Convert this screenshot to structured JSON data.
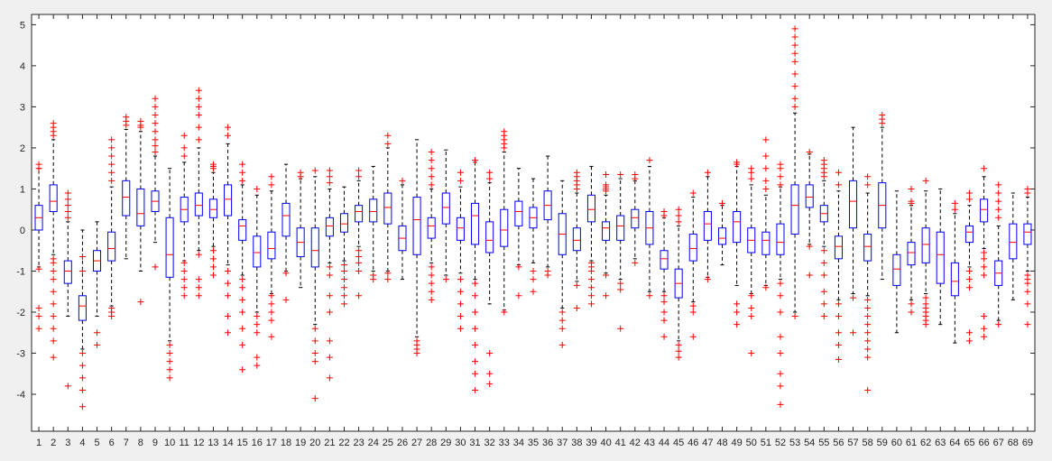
{
  "chart_data": {
    "type": "box",
    "title": "",
    "xlabel": "",
    "ylabel": "",
    "ylim": [
      -4.9,
      5.25
    ],
    "yticks": [
      -4,
      -3,
      -2,
      -1,
      0,
      1,
      2,
      3,
      4,
      5
    ],
    "grid": false,
    "legend": "none",
    "categories": [
      "1",
      "2",
      "3",
      "4",
      "5",
      "6",
      "7",
      "8",
      "9",
      "10",
      "11",
      "12",
      "13",
      "14",
      "15",
      "16",
      "17",
      "18",
      "19",
      "20",
      "21",
      "22",
      "23",
      "24",
      "25",
      "26",
      "27",
      "28",
      "29",
      "30",
      "31",
      "32",
      "33",
      "34",
      "35",
      "36",
      "37",
      "38",
      "39",
      "40",
      "41",
      "42",
      "43",
      "44",
      "45",
      "46",
      "47",
      "48",
      "49",
      "50",
      "51",
      "52",
      "53",
      "54",
      "55",
      "56",
      "57",
      "58",
      "59",
      "60",
      "61",
      "62",
      "63",
      "64",
      "65",
      "66",
      "67",
      "68",
      "69"
    ],
    "colors": {
      "box": "#0000ff",
      "median": "#ff0000",
      "whisker": "#000000",
      "outlier": "#ff0000",
      "axes_bg": "#ffffff",
      "figure_bg": "#f0f0f0"
    },
    "boxes": [
      {
        "q1": 0.0,
        "median": 0.3,
        "q3": 0.6,
        "wlo": -0.9,
        "whi": 1.5,
        "outliers": [
          1.5,
          1.6,
          -0.95,
          -1.9,
          -2.1,
          -2.4
        ]
      },
      {
        "q1": 0.45,
        "median": 0.7,
        "q3": 1.1,
        "wlo": -0.6,
        "whi": 2.2,
        "outliers": [
          2.3,
          2.4,
          2.5,
          2.6,
          -0.7,
          -0.8,
          -1.0,
          -1.2,
          -1.5,
          -1.8,
          -2.1,
          -2.4,
          -2.7,
          -3.1
        ]
      },
      {
        "q1": -1.3,
        "median": -1.0,
        "q3": -0.75,
        "wlo": -2.1,
        "whi": 0.2,
        "outliers": [
          0.3,
          0.45,
          0.6,
          0.75,
          0.9,
          -3.8
        ]
      },
      {
        "q1": -2.2,
        "median": -1.85,
        "q3": -1.6,
        "wlo": -2.9,
        "whi": 0.0,
        "outliers": [
          -0.65,
          -1.0,
          -3.0,
          -3.3,
          -3.6,
          -3.9,
          -4.3
        ]
      },
      {
        "q1": -1.0,
        "median": -0.75,
        "q3": -0.5,
        "wlo": -2.1,
        "whi": 0.2,
        "outliers": [
          -2.5,
          -2.8
        ]
      },
      {
        "q1": -0.75,
        "median": -0.45,
        "q3": -0.05,
        "wlo": -1.85,
        "whi": 1.05,
        "outliers": [
          1.2,
          1.4,
          1.6,
          1.8,
          2.0,
          2.2,
          -1.9,
          -2.0,
          -2.1
        ]
      },
      {
        "q1": 0.35,
        "median": 0.8,
        "q3": 1.2,
        "wlo": -0.7,
        "whi": 2.45,
        "outliers": [
          2.55,
          2.65,
          2.75
        ]
      },
      {
        "q1": 0.1,
        "median": 0.4,
        "q3": 1.0,
        "wlo": -1.0,
        "whi": 2.4,
        "outliers": [
          2.5,
          2.55,
          2.65,
          -1.75
        ]
      },
      {
        "q1": 0.45,
        "median": 0.7,
        "q3": 0.95,
        "wlo": -0.3,
        "whi": 1.8,
        "outliers": [
          1.9,
          2.05,
          2.2,
          2.4,
          2.6,
          2.8,
          3.0,
          3.2,
          -0.9
        ]
      },
      {
        "q1": -1.15,
        "median": -0.6,
        "q3": 0.3,
        "wlo": -2.7,
        "whi": 1.5,
        "outliers": [
          -2.8,
          -3.0,
          -3.2,
          -3.4,
          -3.6
        ]
      },
      {
        "q1": 0.2,
        "median": 0.5,
        "q3": 0.8,
        "wlo": -0.75,
        "whi": 1.65,
        "outliers": [
          1.8,
          2.0,
          2.3,
          -0.8,
          -1.0,
          -1.2,
          -1.4,
          -1.6
        ]
      },
      {
        "q1": 0.35,
        "median": 0.6,
        "q3": 0.9,
        "wlo": -0.5,
        "whi": 2.0,
        "outliers": [
          2.2,
          2.5,
          2.8,
          3.0,
          3.2,
          3.4,
          -0.6,
          -1.2,
          -1.4,
          -1.6
        ]
      },
      {
        "q1": 0.3,
        "median": 0.5,
        "q3": 0.75,
        "wlo": -0.4,
        "whi": 1.4,
        "outliers": [
          1.5,
          1.55,
          1.6,
          -0.5,
          -0.7,
          -0.9,
          -1.1
        ]
      },
      {
        "q1": 0.35,
        "median": 0.75,
        "q3": 1.1,
        "wlo": -0.85,
        "whi": 2.1,
        "outliers": [
          2.3,
          2.5,
          -1.0,
          -1.3,
          -1.6,
          -2.1,
          -2.5
        ]
      },
      {
        "q1": -0.25,
        "median": 0.1,
        "q3": 0.25,
        "wlo": -1.1,
        "whi": 1.1,
        "outliers": [
          1.2,
          1.4,
          1.6,
          -1.2,
          -1.4,
          -1.7,
          -2.0,
          -2.4,
          -2.8,
          -3.4
        ]
      },
      {
        "q1": -0.9,
        "median": -0.55,
        "q3": -0.15,
        "wlo": -2.0,
        "whi": 0.85,
        "outliers": [
          1.0,
          -2.1,
          -2.3,
          -2.5,
          -3.1,
          -3.3
        ]
      },
      {
        "q1": -0.7,
        "median": -0.45,
        "q3": -0.05,
        "wlo": -1.55,
        "whi": 0.95,
        "outliers": [
          1.1,
          1.3,
          -1.6,
          -1.8,
          -2.0,
          -2.2,
          -2.6
        ]
      },
      {
        "q1": -0.15,
        "median": 0.35,
        "q3": 0.65,
        "wlo": -1.0,
        "whi": 1.6,
        "outliers": [
          -1.05,
          -1.7
        ]
      },
      {
        "q1": -0.65,
        "median": -0.3,
        "q3": 0.05,
        "wlo": -1.4,
        "whi": 1.25,
        "outliers": [
          1.3,
          1.4
        ]
      },
      {
        "q1": -0.9,
        "median": -0.5,
        "q3": 0.05,
        "wlo": -2.3,
        "whi": 1.3,
        "outliers": [
          1.45,
          -2.4,
          -2.7,
          -3.0,
          -3.2,
          -4.1
        ]
      },
      {
        "q1": -0.15,
        "median": 0.1,
        "q3": 0.3,
        "wlo": -0.8,
        "whi": 1.0,
        "outliers": [
          1.15,
          1.3,
          1.45,
          -0.9,
          -1.1,
          -1.6,
          -2.0,
          -2.7,
          -3.1,
          -3.6
        ]
      },
      {
        "q1": -0.05,
        "median": 0.15,
        "q3": 0.4,
        "wlo": -0.75,
        "whi": 1.05,
        "outliers": [
          -0.85,
          -1.0,
          -1.2,
          -1.4,
          -1.6,
          -1.8
        ]
      },
      {
        "q1": 0.2,
        "median": 0.45,
        "q3": 0.6,
        "wlo": -0.4,
        "whi": 1.2,
        "outliers": [
          1.3,
          1.45,
          -0.5,
          -0.65,
          -0.8,
          -1.0,
          -1.6
        ]
      },
      {
        "q1": 0.2,
        "median": 0.45,
        "q3": 0.75,
        "wlo": -1.0,
        "whi": 1.55,
        "outliers": [
          -1.1,
          -1.2
        ]
      },
      {
        "q1": 0.15,
        "median": 0.55,
        "q3": 0.9,
        "wlo": -1.0,
        "whi": 2.0,
        "outliers": [
          2.1,
          2.3,
          -1.05,
          -1.2
        ]
      },
      {
        "q1": -0.5,
        "median": -0.2,
        "q3": 0.1,
        "wlo": -1.2,
        "whi": 1.1,
        "outliers": [
          1.2
        ]
      },
      {
        "q1": -0.6,
        "median": 0.25,
        "q3": 0.8,
        "wlo": -2.6,
        "whi": 2.2,
        "outliers": [
          -2.7,
          -2.8,
          -2.9,
          -3.0
        ]
      },
      {
        "q1": -0.2,
        "median": 0.1,
        "q3": 0.3,
        "wlo": -0.8,
        "whi": 1.0,
        "outliers": [
          1.1,
          1.3,
          1.5,
          1.7,
          1.9,
          -0.9,
          -1.1,
          -1.3,
          -1.5,
          -1.7
        ]
      },
      {
        "q1": 0.15,
        "median": 0.55,
        "q3": 0.9,
        "wlo": -1.1,
        "whi": 1.95,
        "outliers": [
          -1.2
        ]
      },
      {
        "q1": -0.25,
        "median": 0.05,
        "q3": 0.3,
        "wlo": -1.05,
        "whi": 1.05,
        "outliers": [
          1.2,
          1.4,
          -1.2,
          -1.5,
          -1.8,
          -2.1,
          -2.4
        ]
      },
      {
        "q1": -0.35,
        "median": 0.35,
        "q3": 0.65,
        "wlo": -1.2,
        "whi": 1.65,
        "outliers": [
          1.7,
          -1.3,
          -1.6,
          -2.0,
          -2.4,
          -2.8,
          -3.2,
          -3.5,
          -3.9
        ]
      },
      {
        "q1": -0.55,
        "median": -0.25,
        "q3": 0.2,
        "wlo": -1.8,
        "whi": 1.15,
        "outliers": [
          1.25,
          1.4,
          -3.0,
          -3.5,
          -3.75
        ]
      },
      {
        "q1": -0.4,
        "median": 0.0,
        "q3": 0.5,
        "wlo": -1.95,
        "whi": 1.9,
        "outliers": [
          2.0,
          2.1,
          2.2,
          2.3,
          2.4,
          -2.0
        ]
      },
      {
        "q1": 0.1,
        "median": 0.45,
        "q3": 0.7,
        "wlo": -0.85,
        "whi": 1.5,
        "outliers": [
          -0.9,
          -1.6
        ]
      },
      {
        "q1": 0.05,
        "median": 0.3,
        "q3": 0.55,
        "wlo": -0.8,
        "whi": 1.25,
        "outliers": [
          -1.0,
          -1.2,
          -1.5
        ]
      },
      {
        "q1": 0.25,
        "median": 0.6,
        "q3": 0.95,
        "wlo": -0.9,
        "whi": 1.8,
        "outliers": [
          -1.0,
          -1.1
        ]
      },
      {
        "q1": -0.6,
        "median": -0.1,
        "q3": 0.4,
        "wlo": -1.9,
        "whi": 1.2,
        "outliers": [
          -2.0,
          -2.2,
          -2.4,
          -2.8
        ]
      },
      {
        "q1": -0.5,
        "median": -0.25,
        "q3": 0.05,
        "wlo": -1.25,
        "whi": 0.9,
        "outliers": [
          1.0,
          1.1,
          1.2,
          1.3,
          1.4,
          -1.35,
          -1.9
        ]
      },
      {
        "q1": 0.2,
        "median": 0.5,
        "q3": 0.85,
        "wlo": -0.75,
        "whi": 1.55,
        "outliers": [
          -0.8,
          -0.9,
          -1.0,
          -1.2,
          -1.4,
          -1.6,
          -1.8
        ]
      },
      {
        "q1": -0.25,
        "median": 0.05,
        "q3": 0.2,
        "wlo": -1.05,
        "whi": 0.85,
        "outliers": [
          0.95,
          1.0,
          1.05,
          1.1,
          1.35,
          -1.1,
          -1.6
        ]
      },
      {
        "q1": -0.25,
        "median": 0.1,
        "q3": 0.35,
        "wlo": -1.2,
        "whi": 1.25,
        "outliers": [
          1.35,
          -1.3,
          -1.45,
          -2.4
        ]
      },
      {
        "q1": 0.05,
        "median": 0.3,
        "q3": 0.5,
        "wlo": -0.7,
        "whi": 1.2,
        "outliers": [
          1.25,
          1.35,
          -0.8
        ]
      },
      {
        "q1": -0.35,
        "median": 0.05,
        "q3": 0.45,
        "wlo": -1.5,
        "whi": 1.55,
        "outliers": [
          1.7,
          -1.6
        ]
      },
      {
        "q1": -0.95,
        "median": -0.7,
        "q3": -0.5,
        "wlo": -1.5,
        "whi": 0.3,
        "outliers": [
          0.35,
          0.45,
          -1.6,
          -1.75,
          -2.0,
          -2.2,
          -2.6
        ]
      },
      {
        "q1": -1.65,
        "median": -1.3,
        "q3": -0.95,
        "wlo": -2.7,
        "whi": 0.1,
        "outliers": [
          0.2,
          0.35,
          0.5,
          -2.8,
          -2.95,
          -3.1
        ]
      },
      {
        "q1": -0.75,
        "median": -0.45,
        "q3": -0.1,
        "wlo": -1.75,
        "whi": 0.8,
        "outliers": [
          0.9,
          -1.85,
          -2.0,
          -2.6
        ]
      },
      {
        "q1": -0.25,
        "median": 0.15,
        "q3": 0.45,
        "wlo": -1.15,
        "whi": 1.3,
        "outliers": [
          1.4,
          -1.2
        ]
      },
      {
        "q1": -0.35,
        "median": -0.2,
        "q3": 0.05,
        "wlo": -0.85,
        "whi": 0.6,
        "outliers": [
          0.65
        ]
      },
      {
        "q1": -0.3,
        "median": 0.2,
        "q3": 0.45,
        "wlo": -1.35,
        "whi": 1.55,
        "outliers": [
          1.6,
          1.65,
          -1.8,
          -2.0,
          -2.3
        ]
      },
      {
        "q1": -0.55,
        "median": -0.25,
        "q3": 0.05,
        "wlo": -1.55,
        "whi": 1.1,
        "outliers": [
          1.25,
          1.4,
          1.5,
          -1.6,
          -1.9,
          -2.1,
          -3.0
        ]
      },
      {
        "q1": -0.6,
        "median": -0.25,
        "q3": -0.05,
        "wlo": -1.35,
        "whi": 0.85,
        "outliers": [
          1.0,
          1.2,
          1.5,
          1.8,
          2.2,
          -1.4
        ]
      },
      {
        "q1": -0.6,
        "median": -0.3,
        "q3": 0.15,
        "wlo": -1.2,
        "whi": 1.05,
        "outliers": [
          1.1,
          1.3,
          1.5,
          1.6,
          -1.3,
          -1.6,
          -2.0,
          -2.6,
          -3.0,
          -3.5,
          -3.8,
          -4.25
        ]
      },
      {
        "q1": -0.1,
        "median": 0.6,
        "q3": 1.1,
        "wlo": -2.0,
        "whi": 2.85,
        "outliers": [
          3.0,
          3.2,
          3.5,
          3.8,
          4.1,
          4.3,
          4.5,
          4.7,
          4.9,
          -2.1
        ]
      },
      {
        "q1": 0.55,
        "median": 0.8,
        "q3": 1.1,
        "wlo": -0.35,
        "whi": 1.85,
        "outliers": [
          1.9,
          -0.4,
          -1.1
        ]
      },
      {
        "q1": 0.2,
        "median": 0.4,
        "q3": 0.6,
        "wlo": -0.4,
        "whi": 1.2,
        "outliers": [
          1.3,
          1.4,
          1.5,
          1.6,
          1.7,
          -0.5,
          -0.8,
          -1.1,
          -1.5,
          -1.8,
          -2.1
        ]
      },
      {
        "q1": -0.7,
        "median": -0.4,
        "q3": -0.15,
        "wlo": -1.7,
        "whi": 0.95,
        "outliers": [
          1.1,
          1.4,
          -1.8,
          -2.1,
          -2.5,
          -2.8,
          -3.15
        ]
      },
      {
        "q1": 0.05,
        "median": 0.7,
        "q3": 1.2,
        "wlo": -1.55,
        "whi": 2.5,
        "outliers": [
          -1.65,
          -2.5
        ]
      },
      {
        "q1": -0.75,
        "median": -0.4,
        "q3": -0.1,
        "wlo": -1.6,
        "whi": 0.9,
        "outliers": [
          1.1,
          1.3,
          -1.7,
          -1.9,
          -2.1,
          -2.3,
          -2.5,
          -2.7,
          -2.9,
          -3.1,
          -3.9
        ]
      },
      {
        "q1": 0.05,
        "median": 0.6,
        "q3": 1.15,
        "wlo": -1.2,
        "whi": 2.5,
        "outliers": [
          2.6,
          2.7,
          2.8
        ]
      },
      {
        "q1": -1.35,
        "median": -0.95,
        "q3": -0.6,
        "wlo": -2.5,
        "whi": 0.95,
        "outliers": []
      },
      {
        "q1": -0.85,
        "median": -0.55,
        "q3": -0.3,
        "wlo": -1.7,
        "whi": 0.6,
        "outliers": [
          0.65,
          0.7,
          1.0,
          -1.8,
          -2.0
        ]
      },
      {
        "q1": -0.8,
        "median": -0.35,
        "q3": 0.05,
        "wlo": -1.55,
        "whi": 0.95,
        "outliers": [
          1.2,
          -1.65,
          -1.8,
          -1.9,
          -2.0,
          -2.1,
          -2.2,
          -2.3
        ]
      },
      {
        "q1": -1.3,
        "median": -0.6,
        "q3": -0.05,
        "wlo": -2.3,
        "whi": 1.0,
        "outliers": []
      },
      {
        "q1": -1.6,
        "median": -1.25,
        "q3": -0.8,
        "wlo": -2.75,
        "whi": 0.4,
        "outliers": [
          0.5,
          0.65
        ]
      },
      {
        "q1": -0.3,
        "median": -0.05,
        "q3": 0.1,
        "wlo": -0.9,
        "whi": 0.6,
        "outliers": [
          0.75,
          0.9,
          -1.0,
          -1.2,
          -1.4,
          -2.5,
          -2.7
        ]
      },
      {
        "q1": 0.2,
        "median": 0.5,
        "q3": 0.75,
        "wlo": -0.45,
        "whi": 1.3,
        "outliers": [
          1.5,
          -0.55,
          -0.7,
          -0.9,
          -1.1,
          -2.1,
          -2.4,
          -2.6
        ]
      },
      {
        "q1": -1.35,
        "median": -1.05,
        "q3": -0.75,
        "wlo": -2.2,
        "whi": 0.1,
        "outliers": [
          0.3,
          0.5,
          0.7,
          0.9,
          1.1,
          -2.3
        ]
      },
      {
        "q1": -0.7,
        "median": -0.3,
        "q3": 0.15,
        "wlo": -1.7,
        "whi": 0.9,
        "outliers": []
      },
      {
        "q1": -0.35,
        "median": -0.05,
        "q3": 0.15,
        "wlo": -1.0,
        "whi": 0.8,
        "outliers": [
          0.9,
          1.0,
          -1.1,
          -1.2,
          -1.3,
          -1.5,
          -1.8,
          -2.3
        ]
      }
    ]
  }
}
